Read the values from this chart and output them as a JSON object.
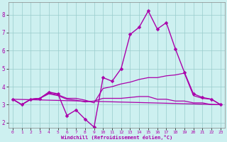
{
  "bg_color": "#cdf0f0",
  "line_color": "#aa00aa",
  "grid_color": "#99cccc",
  "xlabel": "Windchill (Refroidissement éolien,°C)",
  "xlim": [
    -0.5,
    23.5
  ],
  "ylim": [
    1.7,
    8.7
  ],
  "yticks": [
    2,
    3,
    4,
    5,
    6,
    7,
    8
  ],
  "xticks": [
    0,
    1,
    2,
    3,
    4,
    5,
    6,
    7,
    8,
    9,
    10,
    11,
    12,
    13,
    14,
    15,
    16,
    17,
    18,
    19,
    20,
    21,
    22,
    23
  ],
  "xtick_labels": [
    "0",
    "1",
    "2",
    "3",
    "4",
    "5",
    "6",
    "7",
    "8",
    "9",
    "10",
    "11",
    "12",
    "13",
    "14",
    "15",
    "16",
    "17",
    "18",
    "19",
    "20",
    "21",
    "22",
    "23"
  ],
  "series": [
    {
      "x": [
        0,
        1,
        2,
        3,
        4,
        5,
        6,
        7,
        8,
        9,
        10,
        11,
        12,
        13,
        14,
        15,
        16,
        17,
        18,
        19,
        20,
        21,
        22,
        23
      ],
      "y": [
        3.3,
        3.0,
        3.3,
        3.35,
        3.7,
        3.6,
        2.4,
        2.7,
        2.2,
        1.75,
        4.5,
        4.3,
        5.0,
        6.9,
        7.3,
        8.2,
        7.2,
        7.55,
        6.1,
        4.8,
        3.6,
        3.4,
        3.3,
        3.0
      ],
      "marker": "D",
      "markersize": 2.5,
      "linewidth": 1.0
    },
    {
      "x": [
        0,
        1,
        2,
        3,
        4,
        5,
        6,
        7,
        8,
        9,
        10,
        11,
        12,
        13,
        14,
        15,
        16,
        17,
        18,
        19,
        20,
        21,
        22,
        23
      ],
      "y": [
        3.3,
        3.0,
        3.3,
        3.35,
        3.65,
        3.55,
        3.35,
        3.35,
        3.25,
        3.1,
        3.9,
        4.0,
        4.15,
        4.25,
        4.4,
        4.5,
        4.5,
        4.6,
        4.65,
        4.75,
        3.5,
        3.35,
        3.3,
        3.0
      ],
      "marker": null,
      "markersize": 0,
      "linewidth": 0.9
    },
    {
      "x": [
        0,
        1,
        2,
        3,
        4,
        5,
        6,
        7,
        8,
        9,
        10,
        11,
        12,
        13,
        14,
        15,
        16,
        17,
        18,
        19,
        20,
        21,
        22,
        23
      ],
      "y": [
        3.3,
        3.0,
        3.3,
        3.35,
        3.6,
        3.5,
        3.3,
        3.25,
        3.15,
        3.2,
        3.35,
        3.35,
        3.35,
        3.4,
        3.45,
        3.45,
        3.3,
        3.3,
        3.2,
        3.2,
        3.1,
        3.1,
        3.0,
        3.0
      ],
      "marker": null,
      "markersize": 0,
      "linewidth": 0.9
    },
    {
      "x": [
        0,
        23
      ],
      "y": [
        3.3,
        3.0
      ],
      "marker": null,
      "markersize": 0,
      "linewidth": 0.9
    }
  ]
}
